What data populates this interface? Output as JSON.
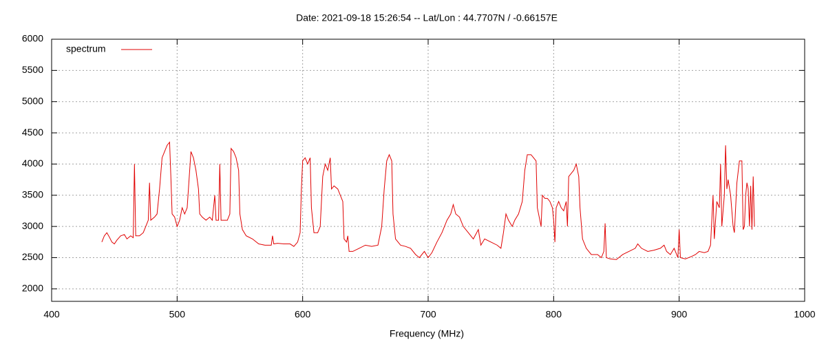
{
  "chart_data": {
    "type": "line",
    "title": "Date: 2021-09-18 15:26:54  --  Lat/Lon : 44.7707N / -0.66157E",
    "x_label": "Frequency (MHz)",
    "xlim": [
      400,
      1000
    ],
    "xticks": [
      400,
      500,
      600,
      700,
      800,
      900,
      1000
    ],
    "ylim": [
      1800,
      6000
    ],
    "yticks": [
      2000,
      2500,
      3000,
      3500,
      4000,
      4500,
      5000,
      5500,
      6000
    ],
    "grid": true,
    "legend": "upper-left",
    "x": [
      440,
      442,
      444,
      446,
      448,
      450,
      452,
      455,
      458,
      460,
      463,
      465,
      466,
      467,
      470,
      473,
      475,
      477,
      478,
      479,
      482,
      484,
      486,
      488,
      490,
      492,
      494,
      495,
      496,
      498,
      500,
      502,
      504,
      506,
      508,
      510,
      511,
      513,
      515,
      517,
      518,
      520,
      523,
      526,
      528,
      530,
      531,
      533,
      534,
      535,
      538,
      540,
      542,
      543,
      545,
      547,
      549,
      550,
      552,
      555,
      560,
      565,
      570,
      575,
      576,
      577,
      580,
      585,
      590,
      593,
      596,
      598,
      599,
      600,
      602,
      604,
      606,
      607,
      609,
      612,
      614,
      616,
      618,
      620,
      622,
      623,
      625,
      628,
      630,
      632,
      633,
      635,
      636,
      637,
      640,
      645,
      650,
      655,
      660,
      663,
      665,
      667,
      669,
      671,
      672,
      674,
      678,
      682,
      686,
      690,
      693,
      697,
      700,
      703,
      707,
      711,
      715,
      718,
      720,
      722,
      725,
      728,
      732,
      736,
      740,
      742,
      745,
      750,
      755,
      758,
      760,
      762,
      764,
      767,
      769,
      772,
      775,
      777,
      779,
      782,
      784,
      786,
      787,
      789,
      790,
      791,
      793,
      795,
      797,
      799,
      800,
      801,
      802,
      804,
      806,
      808,
      810,
      811,
      812,
      814,
      816,
      818,
      820,
      821,
      823,
      826,
      830,
      835,
      838,
      840,
      841,
      842,
      845,
      850,
      855,
      860,
      865,
      867,
      870,
      875,
      880,
      885,
      888,
      890,
      893,
      896,
      899,
      900,
      901,
      905,
      910,
      913,
      916,
      920,
      923,
      925,
      926,
      927,
      928,
      930,
      932,
      933,
      934,
      936,
      937,
      938,
      939,
      941,
      943,
      944,
      946,
      948,
      950,
      951,
      952,
      953,
      954,
      955,
      956,
      957,
      958,
      959,
      960
    ],
    "series": [
      {
        "name": "spectrum",
        "color": "#e00000",
        "values": [
          2750,
          2850,
          2900,
          2830,
          2750,
          2720,
          2780,
          2850,
          2870,
          2800,
          2850,
          2820,
          4000,
          2850,
          2850,
          2900,
          3000,
          3100,
          3700,
          3100,
          3150,
          3200,
          3600,
          4100,
          4200,
          4300,
          4350,
          3800,
          3200,
          3150,
          3000,
          3100,
          3300,
          3200,
          3300,
          3900,
          4200,
          4100,
          3900,
          3600,
          3200,
          3150,
          3100,
          3150,
          3100,
          3500,
          3100,
          3100,
          4000,
          3100,
          3100,
          3100,
          3200,
          4250,
          4200,
          4100,
          3900,
          3200,
          2950,
          2850,
          2800,
          2720,
          2700,
          2700,
          2850,
          2720,
          2730,
          2720,
          2720,
          2680,
          2750,
          2900,
          3600,
          4050,
          4100,
          4000,
          4100,
          3300,
          2900,
          2900,
          3000,
          3800,
          4000,
          3900,
          4100,
          3600,
          3650,
          3600,
          3500,
          3400,
          2800,
          2750,
          2850,
          2600,
          2600,
          2650,
          2700,
          2680,
          2700,
          3000,
          3600,
          4050,
          4150,
          4050,
          3200,
          2800,
          2700,
          2680,
          2650,
          2550,
          2500,
          2600,
          2500,
          2580,
          2750,
          2900,
          3100,
          3200,
          3350,
          3200,
          3150,
          3000,
          2900,
          2800,
          2950,
          2700,
          2800,
          2750,
          2700,
          2650,
          2900,
          3200,
          3100,
          3000,
          3100,
          3200,
          3400,
          3900,
          4150,
          4150,
          4100,
          4050,
          3300,
          3100,
          3000,
          3500,
          3450,
          3450,
          3400,
          3300,
          3100,
          2750,
          3300,
          3400,
          3300,
          3250,
          3400,
          3000,
          3800,
          3850,
          3900,
          4000,
          3800,
          3300,
          2800,
          2650,
          2550,
          2550,
          2500,
          2600,
          3050,
          2500,
          2480,
          2470,
          2550,
          2600,
          2650,
          2720,
          2650,
          2600,
          2620,
          2650,
          2700,
          2600,
          2550,
          2650,
          2500,
          2950,
          2500,
          2480,
          2520,
          2550,
          2600,
          2580,
          2600,
          2700,
          3100,
          3500,
          2800,
          3400,
          3300,
          4000,
          3000,
          3500,
          4300,
          3600,
          3750,
          3500,
          3000,
          2900,
          3700,
          4050,
          4050,
          2950,
          3000,
          3500,
          3700,
          3600,
          3000,
          3650,
          2950,
          3800,
          3000
        ]
      }
    ]
  }
}
